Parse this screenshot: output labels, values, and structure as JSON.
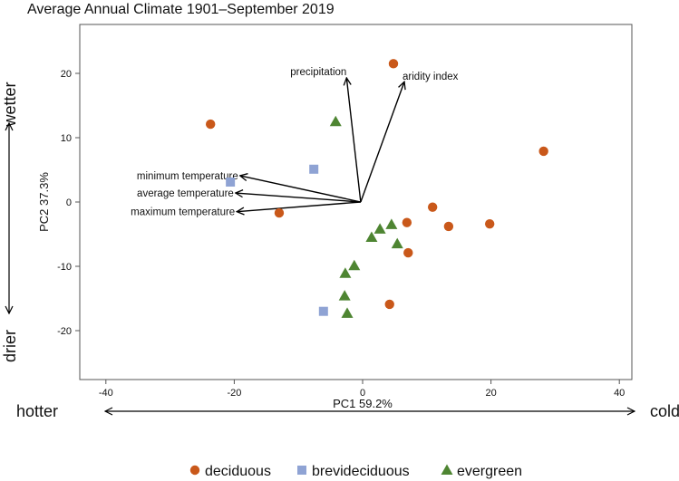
{
  "chart_data": {
    "type": "scatter",
    "title": "Average Annual Climate 1901–September 2019",
    "xlabel": "PC1 59.2%",
    "ylabel": "PC2 37.3%",
    "xlim": [
      -45,
      42
    ],
    "ylim": [
      -27.5,
      27.5
    ],
    "xticks": [
      -40,
      -20,
      0,
      20,
      40
    ],
    "yticks": [
      -20,
      -10,
      0,
      10,
      20
    ],
    "grid": false,
    "y_annotations": {
      "top": "wetter",
      "bottom": "drier"
    },
    "x_annotations": {
      "left": "hotter",
      "right": "colder"
    },
    "legend_position": "bottom",
    "series": [
      {
        "name": "deciduous",
        "color": "#c9581a",
        "marker": "circle",
        "points": [
          [
            -23.7,
            12.1
          ],
          [
            -13.0,
            -1.7
          ],
          [
            4.8,
            21.5
          ],
          [
            28.2,
            7.9
          ],
          [
            10.9,
            -0.8
          ],
          [
            13.4,
            -3.8
          ],
          [
            19.8,
            -3.4
          ],
          [
            6.9,
            -3.2
          ],
          [
            7.1,
            -7.9
          ],
          [
            4.2,
            -15.9
          ]
        ]
      },
      {
        "name": "brevideciduous",
        "color": "#8fa3d4",
        "marker": "square",
        "points": [
          [
            -20.6,
            3.1
          ],
          [
            -7.6,
            5.1
          ],
          [
            -6.1,
            -17.0
          ]
        ]
      },
      {
        "name": "evergreen",
        "color": "#4e8532",
        "marker": "triangle",
        "points": [
          [
            -4.2,
            12.5
          ],
          [
            4.5,
            -3.5
          ],
          [
            2.7,
            -4.2
          ],
          [
            1.4,
            -5.5
          ],
          [
            5.4,
            -6.5
          ],
          [
            -1.3,
            -9.9
          ],
          [
            -2.7,
            -11.1
          ],
          [
            -2.8,
            -14.6
          ],
          [
            -2.4,
            -17.3
          ]
        ]
      }
    ],
    "loadings": [
      {
        "name": "precipitation",
        "x": -2.5,
        "y": 19.3
      },
      {
        "name": "aridity index",
        "x": 6.5,
        "y": 18.7
      },
      {
        "name": "minimum temperature",
        "x": -19.1,
        "y": 4.1
      },
      {
        "name": "average temperature",
        "x": -19.8,
        "y": 1.4
      },
      {
        "name": "maximum temperature",
        "x": -19.6,
        "y": -1.5
      }
    ]
  }
}
